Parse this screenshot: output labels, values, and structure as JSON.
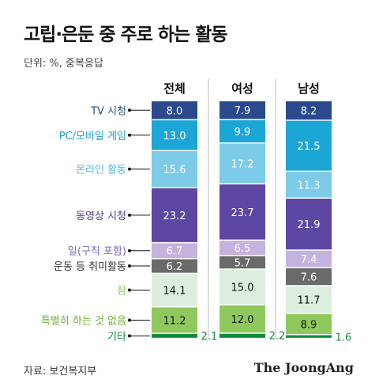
{
  "title": "고립·은둔 중 주로 하는 활동",
  "unit_note": "단위: %, 중복응답",
  "source": "자료: 보건복지부",
  "brand": "The JoongAng",
  "chart_data": {
    "type": "bar",
    "stacked": true,
    "orientation": "vertical",
    "columns": [
      "전체",
      "여성",
      "남성"
    ],
    "categories": [
      "TV 시청",
      "PC/모바일 게임",
      "온라인 활동",
      "동영상 시청",
      "일(구직 포함)",
      "운동 등 취미활동",
      "잠",
      "특별히 하는 것 없음",
      "기타"
    ],
    "category_colors": [
      "#2a4a8d",
      "#1ba6d6",
      "#7ccbe8",
      "#5e47a3",
      "#c4b3df",
      "#6a6a6a",
      "#ddeede",
      "#8fc95e",
      "#128a3d"
    ],
    "label_colors": [
      "#2a4a8d",
      "#1b9fd0",
      "#4fb8df",
      "#4f3a97",
      "#7d64b8",
      "#333333",
      "#8fc95e",
      "#6fae3a",
      "#128a3d"
    ],
    "value_text_colors": [
      "#ffffff",
      "#ffffff",
      "#ffffff",
      "#ffffff",
      "#ffffff",
      "#ffffff",
      "#111111",
      "#111111",
      "#111111"
    ],
    "series": [
      {
        "name": "전체",
        "values": [
          8.0,
          13.0,
          15.6,
          23.2,
          6.7,
          6.2,
          14.1,
          11.2,
          2.1
        ]
      },
      {
        "name": "여성",
        "values": [
          7.9,
          9.9,
          17.2,
          23.7,
          6.5,
          5.7,
          15.0,
          12.0,
          2.2
        ]
      },
      {
        "name": "남성",
        "values": [
          8.2,
          21.5,
          11.3,
          21.9,
          7.4,
          7.6,
          11.7,
          8.9,
          1.6
        ]
      }
    ],
    "value_labels": [
      [
        "8.0",
        "13.0",
        "15.6",
        "23.2",
        "6.7",
        "6.2",
        "14.1",
        "11.2",
        "2.1"
      ],
      [
        "7.9",
        "9.9",
        "17.2",
        "23.7",
        "6.5",
        "5.7",
        "15.0",
        "12.0",
        "2.2"
      ],
      [
        "8.2",
        "21.5",
        "11.3",
        "21.9",
        "7.4",
        "7.6",
        "11.7",
        "8.9",
        "1.6"
      ]
    ],
    "legend": "left"
  }
}
